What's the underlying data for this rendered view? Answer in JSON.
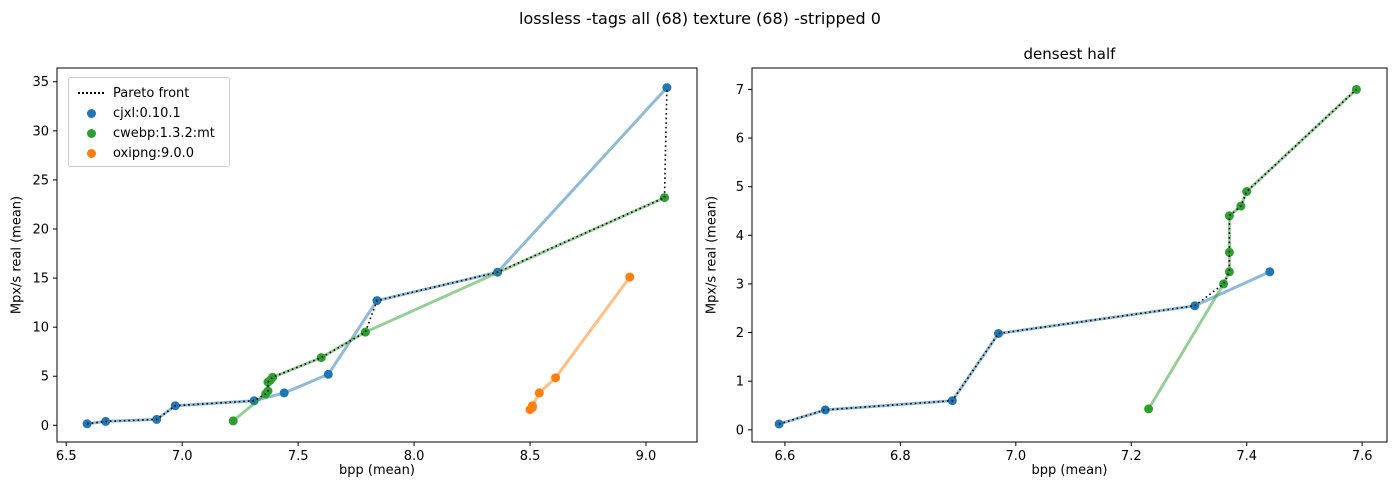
{
  "figure": {
    "suptitle": "lossless -tags all (68) texture (68) -stripped 0",
    "background": "#ffffff"
  },
  "colors": {
    "cjxl": "#1f77b4",
    "cwebp": "#2ca02c",
    "oxipng": "#ff7f0e",
    "pareto": "#000000",
    "spine": "#000000"
  },
  "legend": {
    "pareto_label": "Pareto front",
    "entries": [
      {
        "label": "cjxl:0.10.1",
        "color": "#1f77b4"
      },
      {
        "label": "cwebp:1.3.2:mt",
        "color": "#2ca02c"
      },
      {
        "label": "oxipng:9.0.0",
        "color": "#ff7f0e"
      }
    ]
  },
  "chart_data": [
    {
      "type": "scatter",
      "title": "",
      "xlabel": "bpp (mean)",
      "ylabel": "Mpx/s real (mean)",
      "xlim": [
        6.46,
        9.22
      ],
      "ylim": [
        -1.7,
        36.4
      ],
      "xticks": [
        6.5,
        7.0,
        7.5,
        8.0,
        8.5,
        9.0
      ],
      "xtick_labels": [
        "6.5",
        "7.0",
        "7.5",
        "8.0",
        "8.5",
        "9.0"
      ],
      "yticks": [
        0,
        5,
        10,
        15,
        20,
        25,
        30,
        35
      ],
      "ytick_labels": [
        "0",
        "5",
        "10",
        "15",
        "20",
        "25",
        "30",
        "35"
      ],
      "grid": false,
      "legend_position": "upper left",
      "series": [
        {
          "name": "cjxl:0.10.1",
          "color": "#1f77b4",
          "points": [
            [
              6.59,
              0.15
            ],
            [
              6.67,
              0.4
            ],
            [
              6.89,
              0.6
            ],
            [
              6.97,
              2.0
            ],
            [
              7.31,
              2.5
            ],
            [
              7.44,
              3.3
            ],
            [
              7.63,
              5.2
            ],
            [
              7.84,
              12.7
            ],
            [
              8.36,
              15.6
            ],
            [
              9.09,
              34.4
            ]
          ]
        },
        {
          "name": "cwebp:1.3.2:mt",
          "color": "#2ca02c",
          "points": [
            [
              7.22,
              0.45
            ],
            [
              7.36,
              3.2
            ],
            [
              7.37,
              3.5
            ],
            [
              7.37,
              4.4
            ],
            [
              7.38,
              4.6
            ],
            [
              7.39,
              4.9
            ],
            [
              7.6,
              6.9
            ],
            [
              7.79,
              9.5
            ],
            [
              9.08,
              23.2
            ]
          ]
        },
        {
          "name": "oxipng:9.0.0",
          "color": "#ff7f0e",
          "points": [
            [
              8.5,
              1.6
            ],
            [
              8.51,
              1.8
            ],
            [
              8.51,
              2.0
            ],
            [
              8.54,
              3.3
            ],
            [
              8.61,
              4.85
            ],
            [
              8.93,
              15.1
            ]
          ]
        }
      ],
      "pareto_front": [
        [
          6.59,
          0.15
        ],
        [
          6.67,
          0.4
        ],
        [
          6.89,
          0.6
        ],
        [
          6.97,
          2.0
        ],
        [
          7.31,
          2.5
        ],
        [
          7.36,
          3.2
        ],
        [
          7.37,
          3.5
        ],
        [
          7.37,
          4.4
        ],
        [
          7.38,
          4.6
        ],
        [
          7.39,
          4.9
        ],
        [
          7.6,
          6.9
        ],
        [
          7.79,
          9.5
        ],
        [
          7.84,
          12.7
        ],
        [
          8.36,
          15.6
        ],
        [
          9.08,
          23.2
        ],
        [
          9.09,
          34.4
        ]
      ]
    },
    {
      "type": "scatter",
      "title": "densest half",
      "xlabel": "bpp (mean)",
      "ylabel": "Mpx/s real (mean)",
      "xlim": [
        6.543,
        7.643
      ],
      "ylim": [
        -0.25,
        7.44
      ],
      "xticks": [
        6.6,
        6.8,
        7.0,
        7.2,
        7.4,
        7.6
      ],
      "xtick_labels": [
        "6.6",
        "6.8",
        "7.0",
        "7.2",
        "7.4",
        "7.6"
      ],
      "yticks": [
        0,
        1,
        2,
        3,
        4,
        5,
        6,
        7
      ],
      "ytick_labels": [
        "0",
        "1",
        "2",
        "3",
        "4",
        "5",
        "6",
        "7"
      ],
      "grid": false,
      "legend_position": "none",
      "series": [
        {
          "name": "cjxl:0.10.1",
          "color": "#1f77b4",
          "points": [
            [
              6.59,
              0.12
            ],
            [
              6.67,
              0.41
            ],
            [
              6.89,
              0.6
            ],
            [
              6.97,
              1.98
            ],
            [
              7.31,
              2.55
            ],
            [
              7.44,
              3.25
            ]
          ]
        },
        {
          "name": "cwebp:1.3.2:mt",
          "color": "#2ca02c",
          "points": [
            [
              7.23,
              0.43
            ],
            [
              7.36,
              3.0
            ],
            [
              7.37,
              3.25
            ],
            [
              7.37,
              3.65
            ],
            [
              7.37,
              4.4
            ],
            [
              7.39,
              4.6
            ],
            [
              7.4,
              4.9
            ],
            [
              7.59,
              7.0
            ]
          ]
        }
      ],
      "pareto_front": [
        [
          6.59,
          0.12
        ],
        [
          6.67,
          0.41
        ],
        [
          6.89,
          0.6
        ],
        [
          6.97,
          1.98
        ],
        [
          7.31,
          2.55
        ],
        [
          7.36,
          3.0
        ],
        [
          7.37,
          3.25
        ],
        [
          7.37,
          3.65
        ],
        [
          7.37,
          4.4
        ],
        [
          7.39,
          4.6
        ],
        [
          7.4,
          4.9
        ],
        [
          7.59,
          7.0
        ]
      ]
    }
  ]
}
